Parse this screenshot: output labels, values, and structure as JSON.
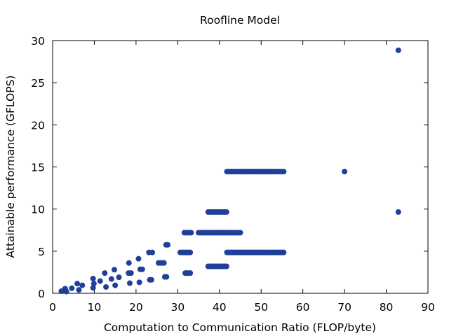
{
  "chart_data": {
    "type": "scatter",
    "title": "Roofline Model",
    "xlabel": "Computation to Communication Ratio (FLOP/byte)",
    "ylabel": "Attainable performance (GFLOPS)",
    "xlim": [
      0,
      90
    ],
    "ylim": [
      0,
      30
    ],
    "xticks": [
      0,
      10,
      20,
      30,
      40,
      50,
      60,
      70,
      80,
      90
    ],
    "yticks": [
      0,
      5,
      10,
      15,
      20,
      25,
      30
    ],
    "grid": false,
    "legend": "none",
    "marker_color": "#1f3f99",
    "series": [
      {
        "points": [
          [
            2.1,
            0.25
          ],
          [
            2.8,
            0.35
          ],
          [
            3.0,
            0.55
          ],
          [
            3.3,
            0.2
          ],
          [
            4.6,
            0.6
          ],
          [
            5.9,
            1.15
          ],
          [
            6.3,
            0.4
          ],
          [
            7.1,
            0.95
          ],
          [
            9.7,
            1.75
          ],
          [
            9.7,
            0.65
          ],
          [
            9.9,
            1.15
          ],
          [
            11.4,
            1.45
          ],
          [
            12.5,
            2.4
          ],
          [
            12.8,
            0.75
          ],
          [
            14.1,
            1.7
          ],
          [
            14.8,
            2.8
          ],
          [
            15.0,
            0.95
          ],
          [
            15.9,
            1.9
          ],
          [
            18.2,
            2.4
          ],
          [
            18.3,
            3.6
          ],
          [
            18.5,
            1.2
          ],
          [
            18.8,
            2.4
          ],
          [
            20.6,
            4.1
          ],
          [
            20.8,
            1.3
          ],
          [
            21.0,
            2.85
          ],
          [
            21.5,
            2.85
          ],
          [
            23.1,
            4.85
          ],
          [
            23.3,
            1.6
          ],
          [
            23.7,
            1.6
          ],
          [
            23.9,
            4.85
          ],
          [
            25.4,
            3.6
          ],
          [
            25.8,
            3.6
          ],
          [
            26.3,
            3.6
          ],
          [
            26.7,
            3.6
          ],
          [
            26.9,
            1.95
          ],
          [
            27.2,
            5.75
          ],
          [
            27.3,
            1.95
          ],
          [
            27.6,
            5.75
          ],
          [
            30.6,
            4.85
          ],
          [
            31.0,
            4.85
          ],
          [
            31.4,
            4.85
          ],
          [
            31.8,
            4.85
          ],
          [
            32.2,
            4.85
          ],
          [
            32.6,
            4.85
          ],
          [
            33.0,
            4.85
          ],
          [
            31.6,
            7.2
          ],
          [
            32.0,
            7.2
          ],
          [
            32.4,
            7.2
          ],
          [
            32.8,
            7.2
          ],
          [
            33.2,
            7.2
          ],
          [
            31.8,
            2.4
          ],
          [
            32.2,
            2.4
          ],
          [
            32.6,
            2.4
          ],
          [
            33.0,
            2.4
          ],
          [
            35.0,
            7.2
          ],
          [
            35.4,
            7.2
          ],
          [
            35.8,
            7.2
          ],
          [
            36.2,
            7.2
          ],
          [
            36.6,
            7.2
          ],
          [
            37.0,
            7.2
          ],
          [
            37.4,
            7.2
          ],
          [
            37.8,
            7.2
          ],
          [
            38.2,
            7.2
          ],
          [
            38.6,
            7.2
          ],
          [
            39.0,
            7.2
          ],
          [
            39.4,
            7.2
          ],
          [
            39.8,
            7.2
          ],
          [
            40.2,
            7.2
          ],
          [
            40.6,
            7.2
          ],
          [
            41.0,
            7.2
          ],
          [
            41.4,
            7.2
          ],
          [
            41.8,
            7.2
          ],
          [
            42.2,
            7.2
          ],
          [
            42.6,
            7.2
          ],
          [
            43.0,
            7.2
          ],
          [
            43.4,
            7.2
          ],
          [
            43.8,
            7.2
          ],
          [
            44.2,
            7.2
          ],
          [
            44.6,
            7.2
          ],
          [
            45.0,
            7.2
          ],
          [
            37.3,
            9.65
          ],
          [
            37.7,
            9.65
          ],
          [
            38.1,
            9.65
          ],
          [
            38.5,
            9.65
          ],
          [
            38.9,
            9.65
          ],
          [
            39.3,
            9.65
          ],
          [
            39.7,
            9.65
          ],
          [
            40.1,
            9.65
          ],
          [
            40.5,
            9.65
          ],
          [
            40.9,
            9.65
          ],
          [
            41.3,
            9.65
          ],
          [
            41.7,
            9.65
          ],
          [
            37.3,
            3.2
          ],
          [
            37.7,
            3.2
          ],
          [
            38.1,
            3.2
          ],
          [
            38.5,
            3.2
          ],
          [
            38.9,
            3.2
          ],
          [
            39.3,
            3.2
          ],
          [
            39.7,
            3.2
          ],
          [
            40.1,
            3.2
          ],
          [
            40.5,
            3.2
          ],
          [
            40.9,
            3.2
          ],
          [
            41.3,
            3.2
          ],
          [
            41.7,
            3.2
          ],
          [
            41.8,
            14.45
          ],
          [
            42.2,
            14.45
          ],
          [
            42.6,
            14.45
          ],
          [
            43.0,
            14.45
          ],
          [
            43.4,
            14.45
          ],
          [
            43.8,
            14.45
          ],
          [
            44.2,
            14.45
          ],
          [
            44.6,
            14.45
          ],
          [
            45.0,
            14.45
          ],
          [
            45.4,
            14.45
          ],
          [
            45.8,
            14.45
          ],
          [
            46.2,
            14.45
          ],
          [
            46.6,
            14.45
          ],
          [
            47.0,
            14.45
          ],
          [
            47.4,
            14.45
          ],
          [
            47.8,
            14.45
          ],
          [
            48.2,
            14.45
          ],
          [
            48.6,
            14.45
          ],
          [
            49.0,
            14.45
          ],
          [
            49.4,
            14.45
          ],
          [
            49.8,
            14.45
          ],
          [
            50.2,
            14.45
          ],
          [
            50.6,
            14.45
          ],
          [
            51.0,
            14.45
          ],
          [
            51.4,
            14.45
          ],
          [
            51.8,
            14.45
          ],
          [
            52.2,
            14.45
          ],
          [
            52.6,
            14.45
          ],
          [
            53.0,
            14.45
          ],
          [
            53.4,
            14.45
          ],
          [
            53.8,
            14.45
          ],
          [
            54.2,
            14.45
          ],
          [
            54.6,
            14.45
          ],
          [
            55.0,
            14.45
          ],
          [
            55.4,
            14.45
          ],
          [
            41.8,
            4.85
          ],
          [
            42.2,
            4.85
          ],
          [
            42.6,
            4.85
          ],
          [
            43.0,
            4.85
          ],
          [
            43.4,
            4.85
          ],
          [
            43.8,
            4.85
          ],
          [
            44.2,
            4.85
          ],
          [
            44.6,
            4.85
          ],
          [
            45.0,
            4.85
          ],
          [
            45.4,
            4.85
          ],
          [
            45.8,
            4.85
          ],
          [
            46.2,
            4.85
          ],
          [
            46.6,
            4.85
          ],
          [
            47.0,
            4.85
          ],
          [
            47.4,
            4.85
          ],
          [
            47.8,
            4.85
          ],
          [
            48.2,
            4.85
          ],
          [
            48.6,
            4.85
          ],
          [
            49.0,
            4.85
          ],
          [
            49.4,
            4.85
          ],
          [
            49.8,
            4.85
          ],
          [
            50.2,
            4.85
          ],
          [
            50.6,
            4.85
          ],
          [
            51.0,
            4.85
          ],
          [
            51.4,
            4.85
          ],
          [
            51.8,
            4.85
          ],
          [
            52.2,
            4.85
          ],
          [
            52.6,
            4.85
          ],
          [
            53.0,
            4.85
          ],
          [
            53.4,
            4.85
          ],
          [
            53.8,
            4.85
          ],
          [
            54.2,
            4.85
          ],
          [
            54.6,
            4.85
          ],
          [
            55.0,
            4.85
          ],
          [
            55.4,
            4.85
          ],
          [
            70.0,
            14.45
          ],
          [
            82.9,
            28.85
          ],
          [
            82.9,
            9.65
          ]
        ]
      }
    ]
  }
}
